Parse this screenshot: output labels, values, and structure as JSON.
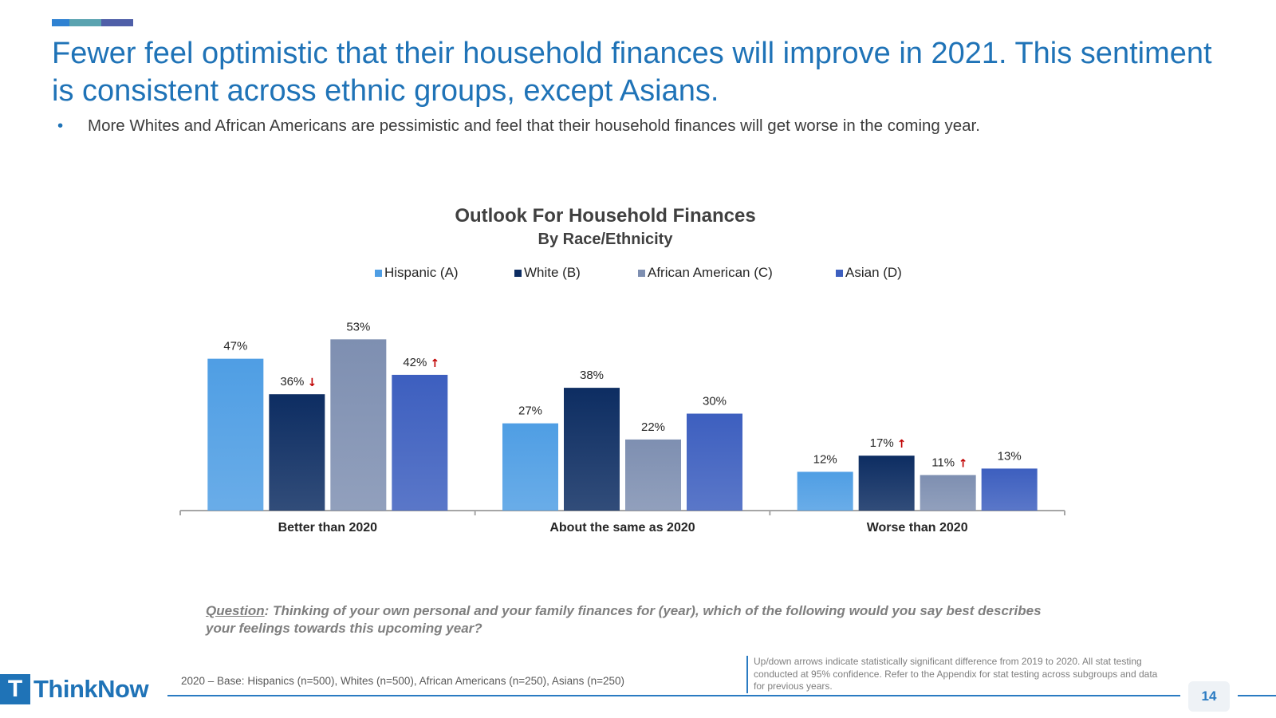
{
  "header": {
    "accent_colors": [
      "#2f82d2",
      "#5aa3b0",
      "#4f5fa8"
    ],
    "title": "Fewer feel optimistic that their household finances will improve in 2021. This sentiment is consistent across ethnic groups, except Asians.",
    "bullet": "More Whites and African Americans are pessimistic and feel that their household finances will get worse in the coming year."
  },
  "chart_data": {
    "type": "bar",
    "title": "Outlook For Household Finances",
    "subtitle": "By Race/Ethnicity",
    "categories": [
      "Better than 2020",
      "About the same as 2020",
      "Worse than 2020"
    ],
    "series": [
      {
        "name": "Hispanic (A)",
        "color": "#4f9ee4",
        "values": [
          47,
          27,
          12
        ],
        "labels": [
          "47%",
          "27%",
          "12%"
        ],
        "arrows": [
          "",
          "",
          ""
        ]
      },
      {
        "name": "White (B)",
        "color": "#0d2d62",
        "values": [
          36,
          38,
          17
        ],
        "labels": [
          "36%",
          "38%",
          "17%"
        ],
        "arrows": [
          "down",
          "",
          "up"
        ]
      },
      {
        "name": "African American (C)",
        "color": "#7e8fb1",
        "values": [
          53,
          22,
          11
        ],
        "labels": [
          "53%",
          "22%",
          "11%"
        ],
        "arrows": [
          "",
          "",
          "up"
        ]
      },
      {
        "name": "Asian (D)",
        "color": "#3d5fbf",
        "values": [
          42,
          30,
          13
        ],
        "labels": [
          "42%",
          "30%",
          "13%"
        ],
        "arrows": [
          "up",
          "",
          ""
        ]
      }
    ],
    "arrow_color": "#c00000",
    "ylim": [
      0,
      60
    ],
    "grid": false,
    "legend_position": "top"
  },
  "footer": {
    "question_label": "Question",
    "question_text": ": Thinking of your own personal and your family finances for (year), which of the following would you say best describes your feelings towards this upcoming year?",
    "base": "2020 – Base: Hispanics (n=500), Whites (n=500), African Americans (n=250), Asians (n=250)",
    "note": "Up/down arrows indicate statistically significant difference from 2019 to 2020. All stat testing conducted at 95% confidence. Refer to the Appendix for stat testing across subgroups and data for previous years.",
    "logo_text": "ThinkNow",
    "logo_mark": "T",
    "page_number": "14"
  }
}
